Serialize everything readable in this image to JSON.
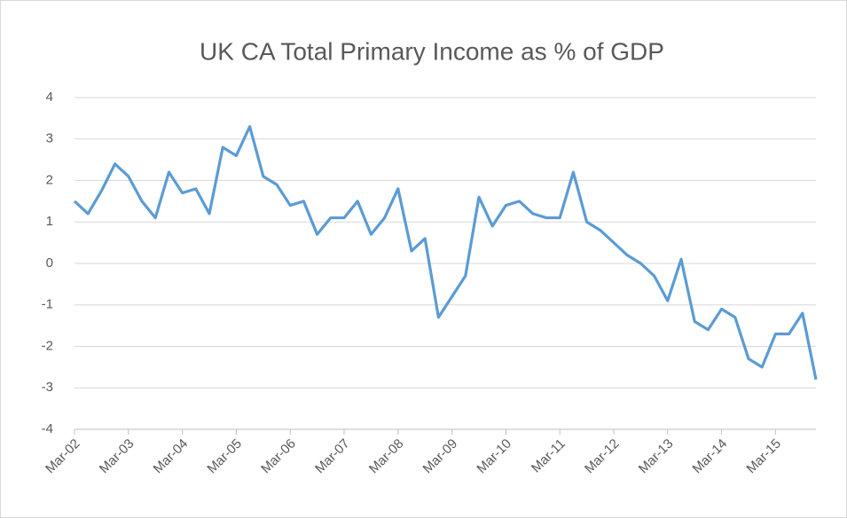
{
  "chart_data": {
    "type": "line",
    "title": "UK CA Total Primary Income as % of GDP",
    "categories": [
      "Mar-02",
      null,
      null,
      null,
      "Mar-03",
      null,
      null,
      null,
      "Mar-04",
      null,
      null,
      null,
      "Mar-05",
      null,
      null,
      null,
      "Mar-06",
      null,
      null,
      null,
      "Mar-07",
      null,
      null,
      null,
      "Mar-08",
      null,
      null,
      null,
      "Mar-09",
      null,
      null,
      null,
      "Mar-10",
      null,
      null,
      null,
      "Mar-11",
      null,
      null,
      null,
      "Mar-12",
      null,
      null,
      null,
      "Mar-13",
      null,
      null,
      null,
      "Mar-14",
      null,
      null,
      null,
      "Mar-15",
      null,
      null,
      null
    ],
    "series": [
      {
        "name": "UK CA Total Primary Income as % of GDP",
        "color": "#5b9bd5",
        "values": [
          1.5,
          1.2,
          1.75,
          2.4,
          2.1,
          1.5,
          1.1,
          2.2,
          1.7,
          1.8,
          1.2,
          2.8,
          2.6,
          3.3,
          2.1,
          1.9,
          1.4,
          1.5,
          0.7,
          1.1,
          1.1,
          1.5,
          0.7,
          1.1,
          1.8,
          0.3,
          0.6,
          -1.3,
          -0.8,
          -0.3,
          1.6,
          0.9,
          1.4,
          1.5,
          1.2,
          1.1,
          1.1,
          2.2,
          1.0,
          0.8,
          0.5,
          0.2,
          0.0,
          -0.3,
          -0.9,
          0.1,
          -1.4,
          -1.6,
          -1.1,
          -1.3,
          -2.3,
          -2.5,
          -1.7,
          -1.7,
          -1.2,
          -2.8
        ]
      }
    ],
    "ylim": [
      -4,
      4
    ],
    "yticks": [
      -4,
      -3,
      -2,
      -1,
      0,
      1,
      2,
      3,
      4
    ],
    "grid": true
  }
}
